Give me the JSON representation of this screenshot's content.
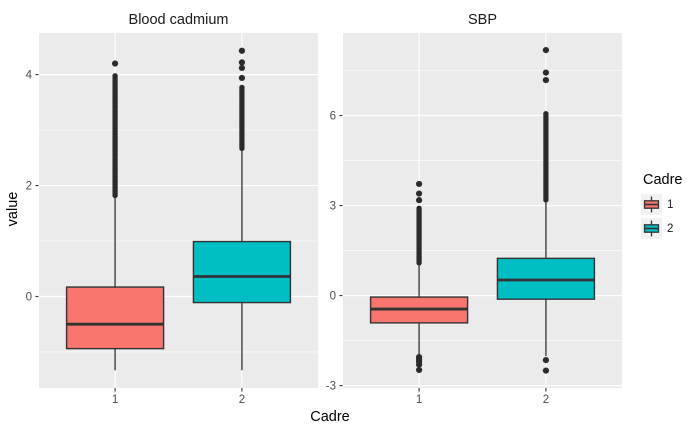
{
  "chart_data": {
    "type": "boxplot",
    "ylabel": "value",
    "xlabel": "Cadre",
    "legend_position": "right",
    "grid": true,
    "facets": [
      {
        "title": "Blood cadmium",
        "ylim": [
          -1.65,
          4.75
        ],
        "yticks": [
          0,
          2,
          4
        ],
        "ytick_labels": [
          "0",
          "2",
          "4"
        ],
        "yminor": [
          -1,
          1,
          3
        ],
        "categories": [
          "1",
          "2"
        ],
        "boxes": [
          {
            "cadre": "1",
            "color": "#F8766D",
            "q1": -0.94,
            "median": -0.5,
            "q3": 0.17,
            "whisker_low": -1.33,
            "whisker_high": 1.8,
            "outlier_ranges": [
              [
                1.82,
                3.98
              ]
            ],
            "outlier_points": [
              4.2
            ]
          },
          {
            "cadre": "2",
            "color": "#00BFC4",
            "q1": -0.11,
            "median": 0.36,
            "q3": 0.99,
            "whisker_low": -1.33,
            "whisker_high": 2.67,
            "outlier_ranges": [
              [
                2.67,
                3.78
              ]
            ],
            "outlier_points": [
              3.94,
              4.12,
              4.22,
              4.43
            ]
          }
        ]
      },
      {
        "title": "SBP",
        "ylim": [
          -3.08,
          8.75
        ],
        "yticks": [
          -3,
          0,
          3,
          6
        ],
        "ytick_labels": [
          "-3",
          "0",
          "3",
          "6"
        ],
        "yminor": [
          -1.5,
          1.5,
          4.5,
          7.5
        ],
        "categories": [
          "1",
          "2"
        ],
        "boxes": [
          {
            "cadre": "1",
            "color": "#F8766D",
            "q1": -0.91,
            "median": -0.45,
            "q3": -0.05,
            "whisker_low": -1.98,
            "whisker_high": 1.09,
            "outlier_ranges": [
              [
                1.09,
                2.91
              ]
            ],
            "outlier_points": [
              3.18,
              3.4,
              3.72,
              -2.05,
              -2.12,
              -2.2,
              -2.3,
              -2.48
            ]
          },
          {
            "cadre": "2",
            "color": "#00BFC4",
            "q1": -0.12,
            "median": 0.52,
            "q3": 1.24,
            "whisker_low": -2.02,
            "whisker_high": 3.19,
            "outlier_ranges": [
              [
                3.19,
                6.07
              ]
            ],
            "outlier_points": [
              7.18,
              7.43,
              8.18,
              -2.15,
              -2.5
            ]
          }
        ]
      }
    ],
    "legend": {
      "title": "Cadre",
      "entries": [
        {
          "label": "1",
          "color": "#F8766D"
        },
        {
          "label": "2",
          "color": "#00BFC4"
        }
      ]
    },
    "theme": {
      "panel_bg": "#EBEBEB",
      "strip_bg": "#D9D9D9",
      "grid_color": "#FFFFFF",
      "box_border": "#333333",
      "outlier_color": "#2b2b2b",
      "axis_text_color": "#4D4D4D",
      "tick_color": "#333333"
    }
  }
}
